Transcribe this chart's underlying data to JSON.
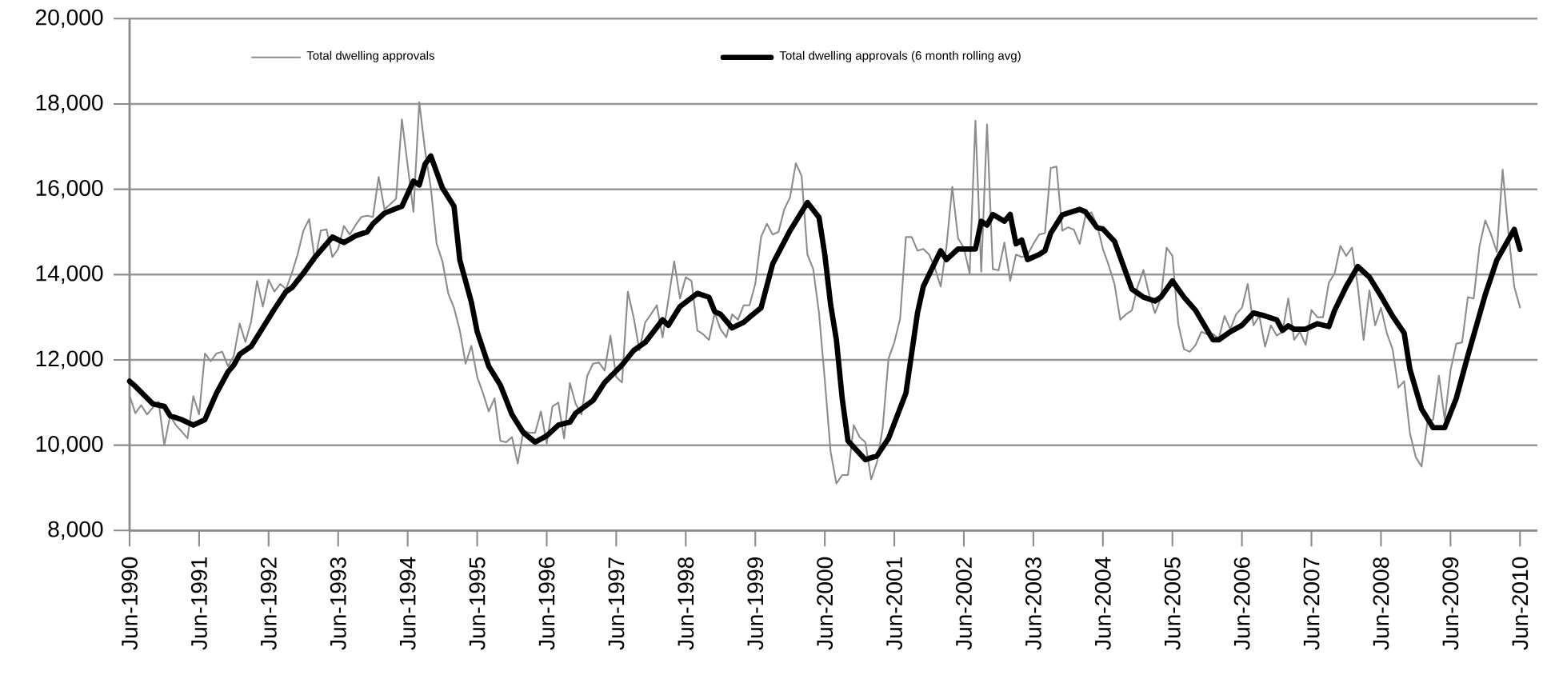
{
  "chart_data": {
    "type": "line",
    "x": [
      "1990-06",
      "1990-07",
      "1990-08",
      "1990-09",
      "1990-10",
      "1990-11",
      "1990-12",
      "1991-01",
      "1991-02",
      "1991-03",
      "1991-04",
      "1991-05",
      "1991-06",
      "1991-07",
      "1991-08",
      "1991-09",
      "1991-10",
      "1991-11",
      "1991-12",
      "1992-01",
      "1992-02",
      "1992-03",
      "1992-04",
      "1992-05",
      "1992-06",
      "1992-07",
      "1992-08",
      "1992-09",
      "1992-10",
      "1992-11",
      "1992-12",
      "1993-01",
      "1993-02",
      "1993-03",
      "1993-04",
      "1993-05",
      "1993-06",
      "1993-07",
      "1993-08",
      "1993-09",
      "1993-10",
      "1993-11",
      "1993-12",
      "1994-01",
      "1994-02",
      "1994-03",
      "1994-04",
      "1994-05",
      "1994-06",
      "1994-07",
      "1994-08",
      "1994-09",
      "1994-10",
      "1994-11",
      "1994-12",
      "1995-01",
      "1995-02",
      "1995-03",
      "1995-04",
      "1995-05",
      "1995-06",
      "1995-07",
      "1995-08",
      "1995-09",
      "1995-10",
      "1995-11",
      "1995-12",
      "1996-01",
      "1996-02",
      "1996-03",
      "1996-04",
      "1996-05",
      "1996-06",
      "1996-07",
      "1996-08",
      "1996-09",
      "1996-10",
      "1996-11",
      "1996-12",
      "1997-01",
      "1997-02",
      "1997-03",
      "1997-04",
      "1997-05",
      "1997-06",
      "1997-07",
      "1997-08",
      "1997-09",
      "1997-10",
      "1997-11",
      "1997-12",
      "1998-01",
      "1998-02",
      "1998-03",
      "1998-04",
      "1998-05",
      "1998-06",
      "1998-07",
      "1998-08",
      "1998-09",
      "1998-10",
      "1998-11",
      "1998-12",
      "1999-01",
      "1999-02",
      "1999-03",
      "1999-04",
      "1999-05",
      "1999-06",
      "1999-07",
      "1999-08",
      "1999-09",
      "1999-10",
      "1999-11",
      "1999-12",
      "2000-01",
      "2000-02",
      "2000-03",
      "2000-04",
      "2000-05",
      "2000-06",
      "2000-07",
      "2000-08",
      "2000-09",
      "2000-10",
      "2000-11",
      "2000-12",
      "2001-01",
      "2001-02",
      "2001-03",
      "2001-04",
      "2001-05",
      "2001-06",
      "2001-07",
      "2001-08",
      "2001-09",
      "2001-10",
      "2001-11",
      "2001-12",
      "2002-01",
      "2002-02",
      "2002-03",
      "2002-04",
      "2002-05",
      "2002-06",
      "2002-07",
      "2002-08",
      "2002-09",
      "2002-10",
      "2002-11",
      "2002-12",
      "2003-01",
      "2003-02",
      "2003-03",
      "2003-04",
      "2003-05",
      "2003-06",
      "2003-07",
      "2003-08",
      "2003-09",
      "2003-10",
      "2003-11",
      "2003-12",
      "2004-01",
      "2004-02",
      "2004-03",
      "2004-04",
      "2004-05",
      "2004-06",
      "2004-07",
      "2004-08",
      "2004-09",
      "2004-10",
      "2004-11",
      "2004-12",
      "2005-01",
      "2005-02",
      "2005-03",
      "2005-04",
      "2005-05",
      "2005-06",
      "2005-07",
      "2005-08",
      "2005-09",
      "2005-10",
      "2005-11",
      "2005-12",
      "2006-01",
      "2006-02",
      "2006-03",
      "2006-04",
      "2006-05",
      "2006-06",
      "2006-07",
      "2006-08",
      "2006-09",
      "2006-10",
      "2006-11",
      "2006-12",
      "2007-01",
      "2007-02",
      "2007-03",
      "2007-04",
      "2007-05",
      "2007-06",
      "2007-07",
      "2007-08",
      "2007-09",
      "2007-10",
      "2007-11",
      "2007-12",
      "2008-01",
      "2008-02",
      "2008-03",
      "2008-04",
      "2008-05",
      "2008-06",
      "2008-07",
      "2008-08",
      "2008-09",
      "2008-10",
      "2008-11",
      "2008-12",
      "2009-01",
      "2009-02",
      "2009-03",
      "2009-04",
      "2009-05",
      "2009-06",
      "2009-07",
      "2009-08",
      "2009-09",
      "2009-10",
      "2009-11",
      "2009-12",
      "2010-01",
      "2010-02",
      "2010-03",
      "2010-04",
      "2010-05",
      "2010-06"
    ],
    "series": [
      {
        "name": "Total dwelling approvals",
        "color": "#8c8c8c",
        "values": [
          11160,
          10750,
          10940,
          10720,
          10880,
          11020,
          10000,
          10690,
          10470,
          10320,
          10160,
          11150,
          10720,
          12150,
          11970,
          12150,
          12190,
          11850,
          12100,
          12850,
          12420,
          12910,
          13850,
          13250,
          13880,
          13600,
          13780,
          13660,
          14030,
          14470,
          15030,
          15300,
          14310,
          15030,
          15060,
          14410,
          14600,
          15140,
          14940,
          15160,
          15350,
          15380,
          15350,
          16290,
          15530,
          15650,
          15780,
          17640,
          16560,
          15470,
          18040,
          16910,
          16030,
          14720,
          14310,
          13560,
          13220,
          12690,
          11910,
          12330,
          11600,
          11220,
          10790,
          11100,
          10100,
          10070,
          10190,
          9570,
          10350,
          10290,
          10290,
          10790,
          10040,
          10910,
          11000,
          10160,
          11460,
          10970,
          10720,
          11630,
          11910,
          11940,
          11750,
          12570,
          11600,
          11470,
          13600,
          13000,
          12220,
          12880,
          13070,
          13280,
          12530,
          13410,
          14310,
          13440,
          13940,
          13850,
          12690,
          12600,
          12470,
          13100,
          12720,
          12530,
          13070,
          12940,
          13280,
          13280,
          13780,
          14880,
          15190,
          14940,
          15000,
          15530,
          15810,
          16610,
          16310,
          14470,
          14130,
          13100,
          11530,
          9850,
          9100,
          9300,
          9300,
          10470,
          10190,
          10070,
          9200,
          9600,
          10410,
          12030,
          12410,
          12970,
          14880,
          14880,
          14560,
          14600,
          14470,
          14160,
          13720,
          14660,
          16060,
          14850,
          14630,
          14030,
          17610,
          14070,
          17520,
          14130,
          14100,
          14750,
          13850,
          14470,
          14410,
          14470,
          14720,
          14940,
          14970,
          16500,
          16530,
          15030,
          15110,
          15050,
          14720,
          15380,
          15460,
          15160,
          14600,
          14220,
          13780,
          12940,
          13070,
          13160,
          13720,
          14110,
          13530,
          13100,
          13440,
          14630,
          14440,
          12850,
          12250,
          12190,
          12350,
          12660,
          12600,
          12610,
          12500,
          13030,
          12720,
          13070,
          13220,
          13780,
          12810,
          13030,
          12310,
          12810,
          12570,
          12660,
          13440,
          12470,
          12660,
          12350,
          13170,
          13000,
          13000,
          13810,
          14030,
          14670,
          14440,
          14630,
          13720,
          12470,
          13630,
          12810,
          13220,
          12630,
          12250,
          11350,
          11500,
          10280,
          9720,
          9500,
          10530,
          10600,
          11630,
          10600,
          11750,
          12380,
          12410,
          13470,
          13440,
          14660,
          15270,
          14940,
          14530,
          16460,
          14970,
          13720,
          13230
        ]
      },
      {
        "name": "Total dwelling approvals (6 month rolling avg)",
        "color": "#000000",
        "x": [
          "1990-06",
          "1990-07",
          "1990-10",
          "1990-12",
          "1991-01",
          "1991-03",
          "1991-05",
          "1991-07",
          "1991-09",
          "1991-11",
          "1991-12",
          "1992-01",
          "1992-03",
          "1992-07",
          "1992-09",
          "1992-10",
          "1992-12",
          "1993-02",
          "1993-05",
          "1993-07",
          "1993-09",
          "1993-11",
          "1993-12",
          "1994-02",
          "1994-05",
          "1994-07",
          "1994-08",
          "1994-09",
          "1994-10",
          "1994-12",
          "1995-02",
          "1995-03",
          "1995-05",
          "1995-06",
          "1995-08",
          "1995-10",
          "1995-12",
          "1996-02",
          "1996-04",
          "1996-06",
          "1996-08",
          "1996-10",
          "1996-11",
          "1997-02",
          "1997-04",
          "1997-07",
          "1997-09",
          "1997-11",
          "1998-02",
          "1998-03",
          "1998-05",
          "1998-08",
          "1998-10",
          "1998-11",
          "1998-12",
          "1999-02",
          "1999-04",
          "1999-05",
          "1999-07",
          "1999-09",
          "1999-12",
          "2000-03",
          "2000-05",
          "2000-06",
          "2000-07",
          "2000-08",
          "2000-09",
          "2000-10",
          "2001-01",
          "2001-03",
          "2001-05",
          "2001-08",
          "2001-10",
          "2001-11",
          "2002-02",
          "2002-03",
          "2002-05",
          "2002-08",
          "2002-09",
          "2002-10",
          "2002-11",
          "2003-01",
          "2003-02",
          "2003-03",
          "2003-04",
          "2003-05",
          "2003-07",
          "2003-08",
          "2003-09",
          "2003-11",
          "2004-02",
          "2004-03",
          "2004-05",
          "2004-06",
          "2004-08",
          "2004-11",
          "2005-01",
          "2005-03",
          "2005-04",
          "2005-06",
          "2005-08",
          "2005-10",
          "2006-01",
          "2006-02",
          "2006-04",
          "2006-06",
          "2006-08",
          "2006-10",
          "2006-12",
          "2007-01",
          "2007-02",
          "2007-03",
          "2007-05",
          "2007-07",
          "2007-09",
          "2007-10",
          "2007-12",
          "2008-02",
          "2008-04",
          "2008-06",
          "2008-08",
          "2008-10",
          "2008-11",
          "2009-01",
          "2009-03",
          "2009-05",
          "2009-07",
          "2009-09",
          "2009-12",
          "2010-02",
          "2010-05",
          "2010-06"
        ],
        "values": [
          11500,
          11380,
          10970,
          10910,
          10690,
          10600,
          10470,
          10600,
          11220,
          11720,
          11880,
          12130,
          12320,
          13190,
          13600,
          13690,
          14030,
          14410,
          14880,
          14750,
          14910,
          15000,
          15190,
          15440,
          15600,
          16190,
          16100,
          16590,
          16780,
          16030,
          15600,
          14340,
          13350,
          12660,
          11850,
          11410,
          10720,
          10290,
          10070,
          10220,
          10470,
          10540,
          10750,
          11050,
          11470,
          11880,
          12220,
          12410,
          12940,
          12810,
          13250,
          13560,
          13470,
          13130,
          13070,
          12750,
          12880,
          13000,
          13220,
          14250,
          15030,
          15690,
          15340,
          14470,
          13300,
          12470,
          11100,
          10100,
          9660,
          9750,
          10160,
          11220,
          13100,
          13720,
          14560,
          14350,
          14600,
          14600,
          15250,
          15160,
          15410,
          15250,
          15410,
          14720,
          14810,
          14350,
          14470,
          14560,
          14970,
          15400,
          15530,
          15470,
          15100,
          15070,
          14780,
          13660,
          13470,
          13380,
          13470,
          13850,
          13470,
          13160,
          12470,
          12470,
          12660,
          12810,
          13100,
          13030,
          12940,
          12690,
          12800,
          12720,
          12720,
          12850,
          12780,
          13160,
          13720,
          14190,
          13940,
          13500,
          13030,
          12630,
          11780,
          10850,
          10410,
          10410,
          11100,
          12100,
          13530,
          14340,
          15060,
          14590
        ]
      }
    ],
    "xlim": [
      "1990-06",
      "2010-09"
    ],
    "xticks": [
      {
        "value": "1990-06",
        "label": "Jun-1990"
      },
      {
        "value": "1991-06",
        "label": "Jun-1991"
      },
      {
        "value": "1992-06",
        "label": "Jun-1992"
      },
      {
        "value": "1993-06",
        "label": "Jun-1993"
      },
      {
        "value": "1994-06",
        "label": "Jun-1994"
      },
      {
        "value": "1995-06",
        "label": "Jun-1995"
      },
      {
        "value": "1996-06",
        "label": "Jun-1996"
      },
      {
        "value": "1997-06",
        "label": "Jun-1997"
      },
      {
        "value": "1998-06",
        "label": "Jun-1998"
      },
      {
        "value": "1999-06",
        "label": "Jun-1999"
      },
      {
        "value": "2000-06",
        "label": "Jun-2000"
      },
      {
        "value": "2001-06",
        "label": "Jun-2001"
      },
      {
        "value": "2002-06",
        "label": "Jun-2002"
      },
      {
        "value": "2003-06",
        "label": "Jun-2003"
      },
      {
        "value": "2004-06",
        "label": "Jun-2004"
      },
      {
        "value": "2005-06",
        "label": "Jun-2005"
      },
      {
        "value": "2006-06",
        "label": "Jun-2006"
      },
      {
        "value": "2007-06",
        "label": "Jun-2007"
      },
      {
        "value": "2008-06",
        "label": "Jun-2008"
      },
      {
        "value": "2009-06",
        "label": "Jun-2009"
      },
      {
        "value": "2010-06",
        "label": "Jun-2010"
      }
    ],
    "ylim": [
      8000,
      20000
    ],
    "yticks": [
      {
        "value": 8000,
        "label": "8,000"
      },
      {
        "value": 10000,
        "label": "10,000"
      },
      {
        "value": 12000,
        "label": "12,000"
      },
      {
        "value": 14000,
        "label": "14,000"
      },
      {
        "value": 16000,
        "label": "16,000"
      },
      {
        "value": 18000,
        "label": "18,000"
      },
      {
        "value": 20000,
        "label": "20,000"
      }
    ],
    "grid": "y",
    "legend": "top"
  }
}
